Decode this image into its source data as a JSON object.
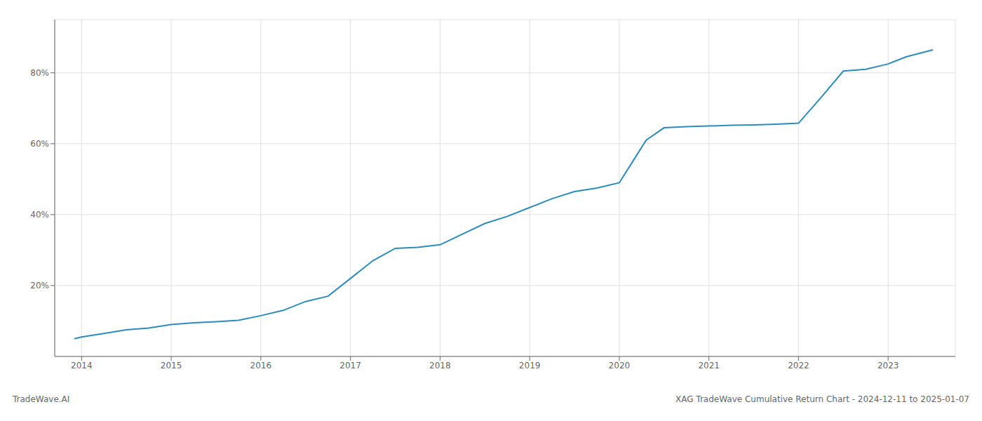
{
  "chart_data": {
    "type": "line",
    "annotations": [
      "TradeWave.AI",
      "XAG TradeWave Cumulative Return Chart - 2024-12-11 to 2025-01-07"
    ],
    "x": [
      2013.92,
      2014.0,
      2014.25,
      2014.5,
      2014.75,
      2015.0,
      2015.25,
      2015.5,
      2015.75,
      2016.0,
      2016.25,
      2016.5,
      2016.75,
      2017.0,
      2017.25,
      2017.5,
      2017.75,
      2018.0,
      2018.25,
      2018.5,
      2018.75,
      2019.0,
      2019.25,
      2019.5,
      2019.75,
      2020.0,
      2020.15,
      2020.3,
      2020.5,
      2020.75,
      2021.0,
      2021.25,
      2021.5,
      2021.75,
      2022.0,
      2022.25,
      2022.5,
      2022.75,
      2023.0,
      2023.2,
      2023.5
    ],
    "values": [
      5.0,
      5.5,
      6.5,
      7.5,
      8.0,
      9.0,
      9.5,
      9.8,
      10.2,
      11.5,
      13.0,
      15.5,
      17.0,
      22.0,
      27.0,
      30.5,
      30.8,
      31.5,
      34.5,
      37.5,
      39.5,
      42.0,
      44.5,
      46.5,
      47.5,
      49.0,
      55.0,
      61.0,
      64.5,
      64.8,
      65.0,
      65.2,
      65.3,
      65.5,
      65.8,
      73.0,
      80.5,
      81.0,
      82.5,
      84.5,
      86.5
    ],
    "color": "#2b8cbe",
    "xlim": [
      2013.7,
      2023.75
    ],
    "xticks": [
      2014,
      2015,
      2016,
      2017,
      2018,
      2019,
      2020,
      2021,
      2022,
      2023
    ],
    "ylim": [
      0,
      95
    ],
    "yticks": [
      {
        "value": 20,
        "label": "20%"
      },
      {
        "value": 40,
        "label": "40%"
      },
      {
        "value": 60,
        "label": "60%"
      },
      {
        "value": 80,
        "label": "80%"
      }
    ],
    "grid": true
  }
}
